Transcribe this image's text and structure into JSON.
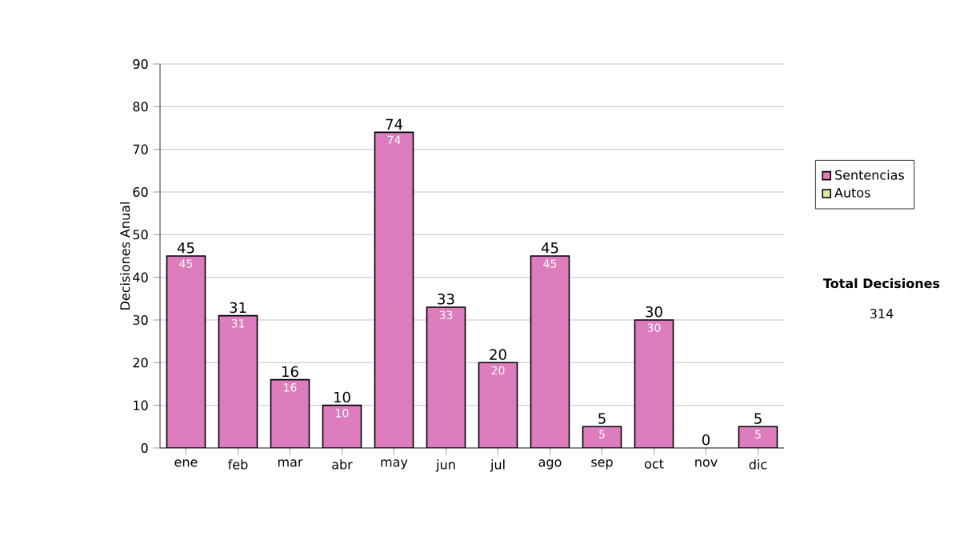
{
  "chart_data": {
    "type": "bar",
    "stacked": true,
    "ylabel": "Decisiones Anual",
    "categories": [
      "ene",
      "feb",
      "mar",
      "abr",
      "may",
      "jun",
      "jul",
      "ago",
      "sep",
      "oct",
      "nov",
      "dic"
    ],
    "series": [
      {
        "name": "Sentencias",
        "color": "#dd7dbd",
        "values": [
          45,
          31,
          16,
          10,
          74,
          33,
          20,
          45,
          5,
          30,
          0,
          5
        ],
        "value_labels": [
          "45",
          "31",
          "16",
          "10",
          "74",
          "33",
          "20",
          "45",
          "5",
          "30",
          null,
          "5"
        ]
      },
      {
        "name": "Autos",
        "color": "#d4eba0",
        "values": [
          0,
          0,
          0,
          0,
          0,
          0,
          0,
          0,
          0,
          0,
          0,
          0
        ]
      }
    ],
    "totals": [
      "45",
      "31",
      "16",
      "10",
      "74",
      "33",
      "20",
      "45",
      "5",
      "30",
      "0",
      "5"
    ],
    "ylim": [
      0,
      90
    ],
    "yticks": [
      0,
      10,
      20,
      30,
      40,
      50,
      60,
      70,
      80,
      90
    ],
    "grid": "y",
    "legend": "right",
    "annotations": [
      "Total Decisiones",
      "314"
    ]
  }
}
